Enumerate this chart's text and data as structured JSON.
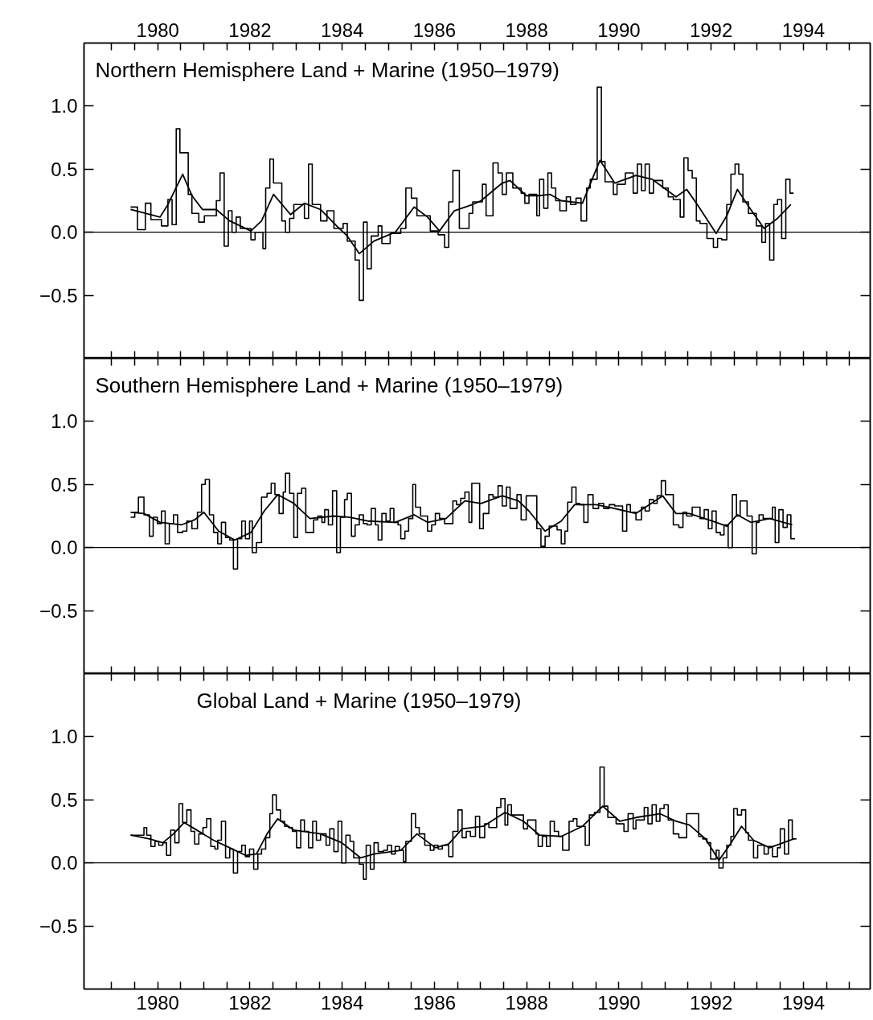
{
  "chart_data": [
    {
      "type": "line",
      "title": "Northern Hemisphere Land + Marine (1950–1979)",
      "xlim": [
        1978.4,
        1995.45
      ],
      "ylim": [
        -1.0,
        1.5
      ],
      "xticks": [
        {
          "value": 1979,
          "label": null
        },
        {
          "value": 1979.5,
          "label": null
        },
        1980,
        {
          "value": 1980.5,
          "label": null
        },
        {
          "value": 1981,
          "label": null
        },
        {
          "value": 1981.5,
          "label": null
        },
        1982,
        {
          "value": 1982.5,
          "label": null
        },
        {
          "value": 1983,
          "label": null
        },
        {
          "value": 1983.5,
          "label": null
        },
        1984,
        {
          "value": 1984.5,
          "label": null
        },
        {
          "value": 1985,
          "label": null
        },
        {
          "value": 1985.5,
          "label": null
        },
        1986,
        {
          "value": 1986.5,
          "label": null
        },
        {
          "value": 1987,
          "label": null
        },
        {
          "value": 1987.5,
          "label": null
        },
        1988,
        {
          "value": 1988.5,
          "label": null
        },
        {
          "value": 1989,
          "label": null
        },
        {
          "value": 1989.5,
          "label": null
        },
        1990,
        {
          "value": 1990.5,
          "label": null
        },
        {
          "value": 1991,
          "label": null
        },
        {
          "value": 1991.5,
          "label": null
        },
        1992,
        {
          "value": 1992.5,
          "label": null
        },
        {
          "value": 1993,
          "label": null
        },
        {
          "value": 1993.5,
          "label": null
        },
        1994,
        {
          "value": 1994.5,
          "label": null
        },
        {
          "value": 1995,
          "label": null
        }
      ],
      "yticks": [
        {
          "value": -0.5,
          "label": "−0.5"
        },
        {
          "value": 0,
          "label": "0.0"
        },
        {
          "value": 0.5,
          "label": "0.5"
        },
        {
          "value": 1,
          "label": "1.0"
        }
      ],
      "ref_lines": [
        {
          "axis": "y",
          "value": 0,
          "label": null,
          "color": "#000000"
        }
      ],
      "series": [
        {
          "type": "step",
          "color": "#000000",
          "x": [
            1979.41,
            1979.56,
            1979.73,
            1979.85,
            1980.08,
            1980.22,
            1980.31,
            1980.4,
            1980.48,
            1980.66,
            1980.74,
            1980.89,
            1981.01,
            1981.27,
            1981.35,
            1981.44,
            1981.53,
            1981.61,
            1981.7,
            1981.79,
            1982.02,
            1982.11,
            1982.28,
            1982.34,
            1982.43,
            1982.51,
            1982.69,
            1982.77,
            1982.86,
            1982.95,
            1983.18,
            1983.27,
            1983.35,
            1983.53,
            1983.67,
            1983.82,
            1984.02,
            1984.11,
            1984.28,
            1984.37,
            1984.46,
            1984.54,
            1984.63,
            1984.78,
            1984.86,
            1985.04,
            1985.27,
            1985.38,
            1985.5,
            1985.62,
            1985.91,
            1986.08,
            1986.22,
            1986.31,
            1986.4,
            1986.54,
            1986.75,
            1986.83,
            1987.04,
            1987.12,
            1987.27,
            1987.38,
            1987.47,
            1987.56,
            1987.7,
            1987.88,
            1987.96,
            1988.05,
            1988.22,
            1988.28,
            1988.37,
            1988.46,
            1988.54,
            1988.63,
            1988.72,
            1988.86,
            1988.95,
            1989.07,
            1989.18,
            1989.3,
            1989.38,
            1989.53,
            1989.62,
            1989.7,
            1989.88,
            1989.96,
            1990.14,
            1990.31,
            1990.4,
            1990.49,
            1990.57,
            1990.66,
            1990.75,
            1990.95,
            1991.07,
            1991.18,
            1991.33,
            1991.41,
            1991.5,
            1991.59,
            1991.68,
            1991.76,
            1991.91,
            1992.05,
            1992.14,
            1992.23,
            1992.34,
            1992.43,
            1992.52,
            1992.6,
            1992.69,
            1992.81,
            1992.98,
            1993.1,
            1993.18,
            1993.27,
            1993.36,
            1993.44,
            1993.53,
            1993.62,
            1993.71,
            1993.79
          ],
          "values": [
            0.2,
            0.02,
            0.23,
            0.1,
            0.05,
            0.26,
            0.06,
            0.82,
            0.63,
            0.3,
            0.15,
            0.08,
            0.13,
            0.25,
            0.47,
            -0.11,
            0.17,
            0.0,
            0.12,
            0.03,
            -0.06,
            0.0,
            -0.13,
            0.35,
            0.58,
            0.39,
            0.09,
            0.0,
            0.11,
            0.22,
            0.11,
            0.54,
            0.22,
            0.09,
            0.17,
            0.03,
            0.07,
            -0.07,
            -0.22,
            -0.54,
            0.08,
            -0.29,
            -0.03,
            0.05,
            -0.09,
            -0.01,
            0.03,
            0.35,
            0.27,
            0.13,
            0.01,
            -0.02,
            -0.12,
            0.24,
            0.49,
            0.03,
            0.15,
            0.24,
            0.38,
            0.13,
            0.55,
            0.47,
            0.3,
            0.47,
            0.35,
            0.31,
            0.23,
            0.3,
            0.13,
            0.42,
            0.19,
            0.47,
            0.35,
            0.25,
            0.17,
            0.28,
            0.22,
            0.27,
            0.09,
            0.35,
            0.42,
            1.15,
            0.56,
            0.4,
            0.3,
            0.38,
            0.47,
            0.31,
            0.54,
            0.33,
            0.54,
            0.31,
            0.41,
            0.35,
            0.28,
            0.26,
            0.12,
            0.59,
            0.49,
            0.43,
            0.09,
            0.07,
            -0.05,
            -0.12,
            -0.05,
            -0.06,
            0.22,
            0.46,
            0.54,
            0.46,
            0.24,
            0.15,
            0.05,
            -0.08,
            0.07,
            -0.22,
            0.22,
            0.26,
            -0.05,
            0.42,
            0.31,
            0.31
          ]
        },
        {
          "color": "#000000",
          "x": [
            1979.41,
            1980.05,
            1980.22,
            1980.54,
            1980.74,
            1980.97,
            1981.27,
            1981.56,
            1982.02,
            1982.25,
            1982.51,
            1982.88,
            1983.18,
            1983.53,
            1983.88,
            1984.11,
            1984.37,
            1984.69,
            1985.15,
            1985.56,
            1985.85,
            1986.11,
            1986.43,
            1986.83,
            1987.01,
            1987.47,
            1987.64,
            1987.99,
            1988.28,
            1988.51,
            1988.75,
            1989.21,
            1989.33,
            1989.59,
            1989.91,
            1990.37,
            1990.72,
            1991.24,
            1991.47,
            1991.7,
            1992.11,
            1992.34,
            1992.57,
            1992.86,
            1993.15,
            1993.44,
            1993.73
          ],
          "values": [
            0.18,
            0.12,
            0.22,
            0.46,
            0.29,
            0.18,
            0.18,
            0.09,
            0.01,
            0.09,
            0.3,
            0.14,
            0.23,
            0.18,
            0.05,
            -0.03,
            -0.17,
            -0.07,
            0.0,
            0.2,
            0.12,
            0.01,
            0.17,
            0.22,
            0.25,
            0.39,
            0.41,
            0.29,
            0.29,
            0.3,
            0.25,
            0.23,
            0.34,
            0.57,
            0.39,
            0.45,
            0.42,
            0.28,
            0.34,
            0.22,
            -0.01,
            0.13,
            0.34,
            0.18,
            0.03,
            0.11,
            0.22
          ]
        }
      ]
    },
    {
      "type": "line",
      "title": "Southern Hemisphere Land + Marine (1950–1979)",
      "xlim": [
        1978.4,
        1995.45
      ],
      "ylim": [
        -1.0,
        1.5
      ],
      "tick_labels": "y",
      "xticks": [
        {
          "value": 1979,
          "label": null
        },
        {
          "value": 1979.5,
          "label": null
        },
        1980,
        {
          "value": 1980.5,
          "label": null
        },
        {
          "value": 1981,
          "label": null
        },
        {
          "value": 1981.5,
          "label": null
        },
        1982,
        {
          "value": 1982.5,
          "label": null
        },
        {
          "value": 1983,
          "label": null
        },
        {
          "value": 1983.5,
          "label": null
        },
        1984,
        {
          "value": 1984.5,
          "label": null
        },
        {
          "value": 1985,
          "label": null
        },
        {
          "value": 1985.5,
          "label": null
        },
        1986,
        {
          "value": 1986.5,
          "label": null
        },
        {
          "value": 1987,
          "label": null
        },
        {
          "value": 1987.5,
          "label": null
        },
        1988,
        {
          "value": 1988.5,
          "label": null
        },
        {
          "value": 1989,
          "label": null
        },
        {
          "value": 1989.5,
          "label": null
        },
        1990,
        {
          "value": 1990.5,
          "label": null
        },
        {
          "value": 1991,
          "label": null
        },
        {
          "value": 1991.5,
          "label": null
        },
        1992,
        {
          "value": 1992.5,
          "label": null
        },
        {
          "value": 1993,
          "label": null
        },
        {
          "value": 1993.5,
          "label": null
        },
        1994,
        {
          "value": 1994.5,
          "label": null
        },
        {
          "value": 1995,
          "label": null
        }
      ],
      "yticks": [
        {
          "value": -0.5,
          "label": "−0.5"
        },
        {
          "value": 0,
          "label": "0.0"
        },
        {
          "value": 0.5,
          "label": "0.5"
        },
        {
          "value": 1,
          "label": "1.0"
        }
      ],
      "ref_lines": [
        {
          "axis": "y",
          "value": 0,
          "label": null,
          "color": "#000000"
        }
      ],
      "series": [
        {
          "type": "step",
          "color": "#000000",
          "x": [
            1979.41,
            1979.5,
            1979.58,
            1979.7,
            1979.82,
            1979.9,
            1979.99,
            1980.08,
            1980.16,
            1980.25,
            1980.34,
            1980.43,
            1980.54,
            1980.63,
            1980.74,
            1980.86,
            1980.95,
            1981.03,
            1981.12,
            1981.21,
            1981.3,
            1981.38,
            1981.47,
            1981.56,
            1981.64,
            1981.73,
            1981.82,
            1981.9,
            1981.99,
            1982.05,
            1982.14,
            1982.25,
            1982.37,
            1982.46,
            1982.54,
            1982.63,
            1982.72,
            1982.77,
            1982.86,
            1982.95,
            1983.03,
            1983.12,
            1983.21,
            1983.38,
            1983.47,
            1983.56,
            1983.62,
            1983.7,
            1983.79,
            1983.88,
            1983.96,
            1984.05,
            1984.11,
            1984.2,
            1984.28,
            1984.37,
            1984.46,
            1984.54,
            1984.63,
            1984.72,
            1984.78,
            1984.86,
            1984.95,
            1985.04,
            1985.12,
            1985.21,
            1985.27,
            1985.36,
            1985.44,
            1985.53,
            1985.59,
            1985.7,
            1985.85,
            1985.94,
            1986.02,
            1986.11,
            1986.22,
            1986.4,
            1986.48,
            1986.57,
            1986.66,
            1986.75,
            1986.81,
            1986.98,
            1987.06,
            1987.18,
            1987.27,
            1987.38,
            1987.47,
            1987.56,
            1987.64,
            1987.79,
            1987.88,
            1987.99,
            1988.22,
            1988.31,
            1988.4,
            1988.49,
            1988.66,
            1988.75,
            1988.83,
            1988.89,
            1988.98,
            1989.07,
            1989.15,
            1989.24,
            1989.33,
            1989.44,
            1989.56,
            1989.67,
            1989.79,
            1989.91,
            1990.08,
            1990.17,
            1990.25,
            1990.37,
            1990.49,
            1990.57,
            1990.66,
            1990.75,
            1990.83,
            1990.92,
            1991.01,
            1991.18,
            1991.3,
            1991.39,
            1991.47,
            1991.59,
            1991.76,
            1991.85,
            1991.94,
            1992.02,
            1992.11,
            1992.2,
            1992.28,
            1992.37,
            1992.46,
            1992.55,
            1992.63,
            1992.78,
            1992.89,
            1992.98,
            1993.04,
            1993.13,
            1993.33,
            1993.39,
            1993.47,
            1993.56,
            1993.65,
            1993.73,
            1993.82
          ],
          "values": [
            0.24,
            0.28,
            0.4,
            0.26,
            0.09,
            0.24,
            0.19,
            0.29,
            0.03,
            0.19,
            0.26,
            0.12,
            0.13,
            0.21,
            0.15,
            0.28,
            0.5,
            0.54,
            0.26,
            0.12,
            0.03,
            0.2,
            0.08,
            0.06,
            -0.17,
            0.07,
            0.21,
            0.07,
            0.21,
            -0.04,
            0.04,
            0.4,
            0.43,
            0.51,
            0.42,
            0.27,
            0.44,
            0.59,
            0.43,
            0.08,
            0.43,
            0.47,
            0.12,
            0.22,
            0.25,
            0.2,
            0.3,
            0.18,
            0.45,
            -0.04,
            0.24,
            0.38,
            0.43,
            0.09,
            0.18,
            0.26,
            0.19,
            0.18,
            0.31,
            0.18,
            0.06,
            0.27,
            0.21,
            0.31,
            0.2,
            0.18,
            0.07,
            0.13,
            0.23,
            0.5,
            0.32,
            0.25,
            0.13,
            0.18,
            0.27,
            0.23,
            0.19,
            0.37,
            0.34,
            0.39,
            0.44,
            0.2,
            0.51,
            0.15,
            0.27,
            0.42,
            0.4,
            0.49,
            0.33,
            0.48,
            0.31,
            0.42,
            0.22,
            0.41,
            0.15,
            0.01,
            0.09,
            0.17,
            0.14,
            0.03,
            0.13,
            0.36,
            0.48,
            0.35,
            0.34,
            0.2,
            0.42,
            0.31,
            0.35,
            0.31,
            0.34,
            0.33,
            0.13,
            0.34,
            0.28,
            0.22,
            0.32,
            0.29,
            0.38,
            0.35,
            0.41,
            0.53,
            0.42,
            0.18,
            0.16,
            0.28,
            0.25,
            0.32,
            0.23,
            0.3,
            0.15,
            0.29,
            0.12,
            0.1,
            0.18,
            0.0,
            0.42,
            0.25,
            0.37,
            0.25,
            -0.05,
            0.2,
            0.26,
            0.23,
            0.32,
            0.04,
            0.3,
            0.16,
            0.26,
            0.07,
            0.07
          ]
        },
        {
          "color": "#000000",
          "x": [
            1979.41,
            1979.7,
            1980.05,
            1980.51,
            1980.8,
            1981.0,
            1981.32,
            1981.67,
            1982.02,
            1982.31,
            1982.6,
            1982.95,
            1983.3,
            1983.82,
            1984.17,
            1984.57,
            1985.15,
            1985.56,
            1985.85,
            1986.25,
            1986.66,
            1987.01,
            1987.47,
            1987.82,
            1988.05,
            1988.4,
            1988.75,
            1989.04,
            1989.5,
            1989.79,
            1990.37,
            1990.95,
            1991.24,
            1991.53,
            1992.11,
            1992.34,
            1992.57,
            1992.86,
            1993.27,
            1993.76
          ],
          "values": [
            0.28,
            0.27,
            0.2,
            0.18,
            0.22,
            0.28,
            0.13,
            0.06,
            0.12,
            0.29,
            0.42,
            0.35,
            0.23,
            0.25,
            0.24,
            0.21,
            0.2,
            0.26,
            0.2,
            0.23,
            0.37,
            0.35,
            0.41,
            0.37,
            0.29,
            0.13,
            0.21,
            0.34,
            0.34,
            0.32,
            0.27,
            0.41,
            0.27,
            0.27,
            0.2,
            0.17,
            0.26,
            0.2,
            0.23,
            0.18
          ]
        }
      ]
    },
    {
      "type": "line",
      "title": "Global Land + Marine (1950–1979)",
      "xlim": [
        1978.4,
        1995.45
      ],
      "ylim": [
        -1.0,
        1.5
      ],
      "xticks": [
        {
          "value": 1979,
          "label": null
        },
        {
          "value": 1979.5,
          "label": null
        },
        1980,
        {
          "value": 1980.5,
          "label": null
        },
        {
          "value": 1981,
          "label": null
        },
        {
          "value": 1981.5,
          "label": null
        },
        1982,
        {
          "value": 1982.5,
          "label": null
        },
        {
          "value": 1983,
          "label": null
        },
        {
          "value": 1983.5,
          "label": null
        },
        1984,
        {
          "value": 1984.5,
          "label": null
        },
        {
          "value": 1985,
          "label": null
        },
        {
          "value": 1985.5,
          "label": null
        },
        1986,
        {
          "value": 1986.5,
          "label": null
        },
        {
          "value": 1987,
          "label": null
        },
        {
          "value": 1987.5,
          "label": null
        },
        1988,
        {
          "value": 1988.5,
          "label": null
        },
        {
          "value": 1989,
          "label": null
        },
        {
          "value": 1989.5,
          "label": null
        },
        1990,
        {
          "value": 1990.5,
          "label": null
        },
        {
          "value": 1991,
          "label": null
        },
        {
          "value": 1991.5,
          "label": null
        },
        1992,
        {
          "value": 1992.5,
          "label": null
        },
        {
          "value": 1993,
          "label": null
        },
        {
          "value": 1993.5,
          "label": null
        },
        1994,
        {
          "value": 1994.5,
          "label": null
        },
        {
          "value": 1995,
          "label": null
        }
      ],
      "yticks": [
        {
          "value": -0.5,
          "label": "−0.5"
        },
        {
          "value": 0,
          "label": "0.0"
        },
        {
          "value": 0.5,
          "label": "0.5"
        },
        {
          "value": 1,
          "label": "1.0"
        }
      ],
      "ref_lines": [
        {
          "axis": "y",
          "value": 0,
          "label": null,
          "color": "#000000"
        }
      ],
      "series": [
        {
          "type": "step",
          "color": "#000000",
          "x": [
            1979.41,
            1979.7,
            1979.76,
            1979.85,
            1979.94,
            1980.02,
            1980.11,
            1980.19,
            1980.28,
            1980.37,
            1980.46,
            1980.54,
            1980.63,
            1980.72,
            1980.8,
            1980.89,
            1980.98,
            1981.06,
            1981.15,
            1981.24,
            1981.3,
            1981.38,
            1981.47,
            1981.56,
            1981.64,
            1981.73,
            1981.82,
            1981.9,
            1981.99,
            1982.08,
            1982.17,
            1982.25,
            1982.34,
            1982.43,
            1982.49,
            1982.57,
            1982.66,
            1982.75,
            1982.83,
            1982.92,
            1983.01,
            1983.1,
            1983.18,
            1983.27,
            1983.36,
            1983.44,
            1983.53,
            1983.65,
            1983.73,
            1983.82,
            1983.91,
            1983.99,
            1984.08,
            1984.17,
            1984.25,
            1984.37,
            1984.46,
            1984.52,
            1984.61,
            1984.69,
            1984.78,
            1984.9,
            1984.98,
            1985.07,
            1985.15,
            1985.24,
            1985.33,
            1985.38,
            1985.5,
            1985.59,
            1985.67,
            1985.79,
            1985.91,
            1985.99,
            1986.08,
            1986.17,
            1986.31,
            1986.4,
            1986.51,
            1986.6,
            1986.69,
            1986.78,
            1986.89,
            1986.98,
            1987.09,
            1987.18,
            1987.35,
            1987.44,
            1987.53,
            1987.59,
            1987.67,
            1987.93,
            1988.02,
            1988.2,
            1988.25,
            1988.34,
            1988.43,
            1988.51,
            1988.6,
            1988.69,
            1988.78,
            1988.92,
            1989.01,
            1989.09,
            1989.27,
            1989.36,
            1989.47,
            1989.59,
            1989.68,
            1989.76,
            1989.94,
            1990.11,
            1990.2,
            1990.31,
            1990.37,
            1990.55,
            1990.63,
            1990.72,
            1990.81,
            1990.89,
            1990.98,
            1991.07,
            1991.18,
            1991.3,
            1991.47,
            1991.73,
            1991.82,
            1991.91,
            1991.99,
            1992.11,
            1992.17,
            1992.26,
            1992.34,
            1992.43,
            1992.49,
            1992.57,
            1992.66,
            1992.75,
            1992.81,
            1992.92,
            1993.01,
            1993.15,
            1993.24,
            1993.33,
            1993.44,
            1993.5,
            1993.59,
            1993.68,
            1993.76,
            1993.85
          ],
          "values": [
            0.22,
            0.28,
            0.22,
            0.13,
            0.17,
            0.14,
            0.16,
            0.06,
            0.26,
            0.16,
            0.47,
            0.32,
            0.42,
            0.25,
            0.15,
            0.23,
            0.28,
            0.35,
            0.13,
            0.11,
            0.18,
            0.33,
            0.04,
            0.11,
            -0.08,
            0.09,
            0.14,
            0.05,
            0.11,
            -0.05,
            0.07,
            0.11,
            0.2,
            0.39,
            0.54,
            0.42,
            0.33,
            0.29,
            0.28,
            0.25,
            0.12,
            0.34,
            0.25,
            0.12,
            0.33,
            0.18,
            0.23,
            0.14,
            0.27,
            0.09,
            0.33,
            0.0,
            0.22,
            0.17,
            0.04,
            -0.01,
            -0.13,
            0.14,
            -0.05,
            0.16,
            0.09,
            0.1,
            0.14,
            0.07,
            0.13,
            0.1,
            0.01,
            0.17,
            0.39,
            0.28,
            0.23,
            0.14,
            0.1,
            0.14,
            0.11,
            0.14,
            0.05,
            0.25,
            0.42,
            0.2,
            0.25,
            0.21,
            0.37,
            0.2,
            0.31,
            0.28,
            0.44,
            0.51,
            0.3,
            0.46,
            0.38,
            0.27,
            0.34,
            0.23,
            0.13,
            0.21,
            0.13,
            0.33,
            0.25,
            0.21,
            0.1,
            0.33,
            0.35,
            0.29,
            0.14,
            0.38,
            0.4,
            0.76,
            0.45,
            0.36,
            0.31,
            0.25,
            0.39,
            0.27,
            0.34,
            0.44,
            0.31,
            0.46,
            0.33,
            0.43,
            0.46,
            0.34,
            0.23,
            0.2,
            0.39,
            0.21,
            0.19,
            0.16,
            0.03,
            0.1,
            -0.04,
            0.04,
            0.14,
            0.21,
            0.43,
            0.38,
            0.42,
            0.24,
            0.18,
            0.04,
            0.14,
            0.07,
            0.13,
            0.05,
            0.12,
            0.27,
            0.07,
            0.34,
            0.19,
            0.19
          ]
        },
        {
          "color": "#000000",
          "x": [
            1979.41,
            1979.82,
            1980.11,
            1980.34,
            1980.57,
            1980.8,
            1981.21,
            1981.56,
            1981.9,
            1982.14,
            1982.37,
            1982.6,
            1982.95,
            1983.53,
            1983.99,
            1984.4,
            1984.69,
            1985.27,
            1985.62,
            1986.02,
            1986.31,
            1986.6,
            1987.06,
            1987.53,
            1987.93,
            1988.28,
            1988.75,
            1989.21,
            1989.65,
            1990.02,
            1990.37,
            1990.89,
            1991.24,
            1991.53,
            1991.88,
            1992.17,
            1992.4,
            1992.66,
            1992.92,
            1993.27,
            1993.79
          ],
          "values": [
            0.22,
            0.19,
            0.16,
            0.23,
            0.32,
            0.27,
            0.18,
            0.12,
            0.06,
            0.07,
            0.23,
            0.35,
            0.26,
            0.23,
            0.16,
            0.04,
            0.07,
            0.1,
            0.23,
            0.12,
            0.15,
            0.27,
            0.29,
            0.4,
            0.33,
            0.22,
            0.21,
            0.29,
            0.45,
            0.33,
            0.36,
            0.39,
            0.33,
            0.3,
            0.19,
            0.02,
            0.14,
            0.29,
            0.18,
            0.12,
            0.19
          ]
        }
      ]
    }
  ]
}
